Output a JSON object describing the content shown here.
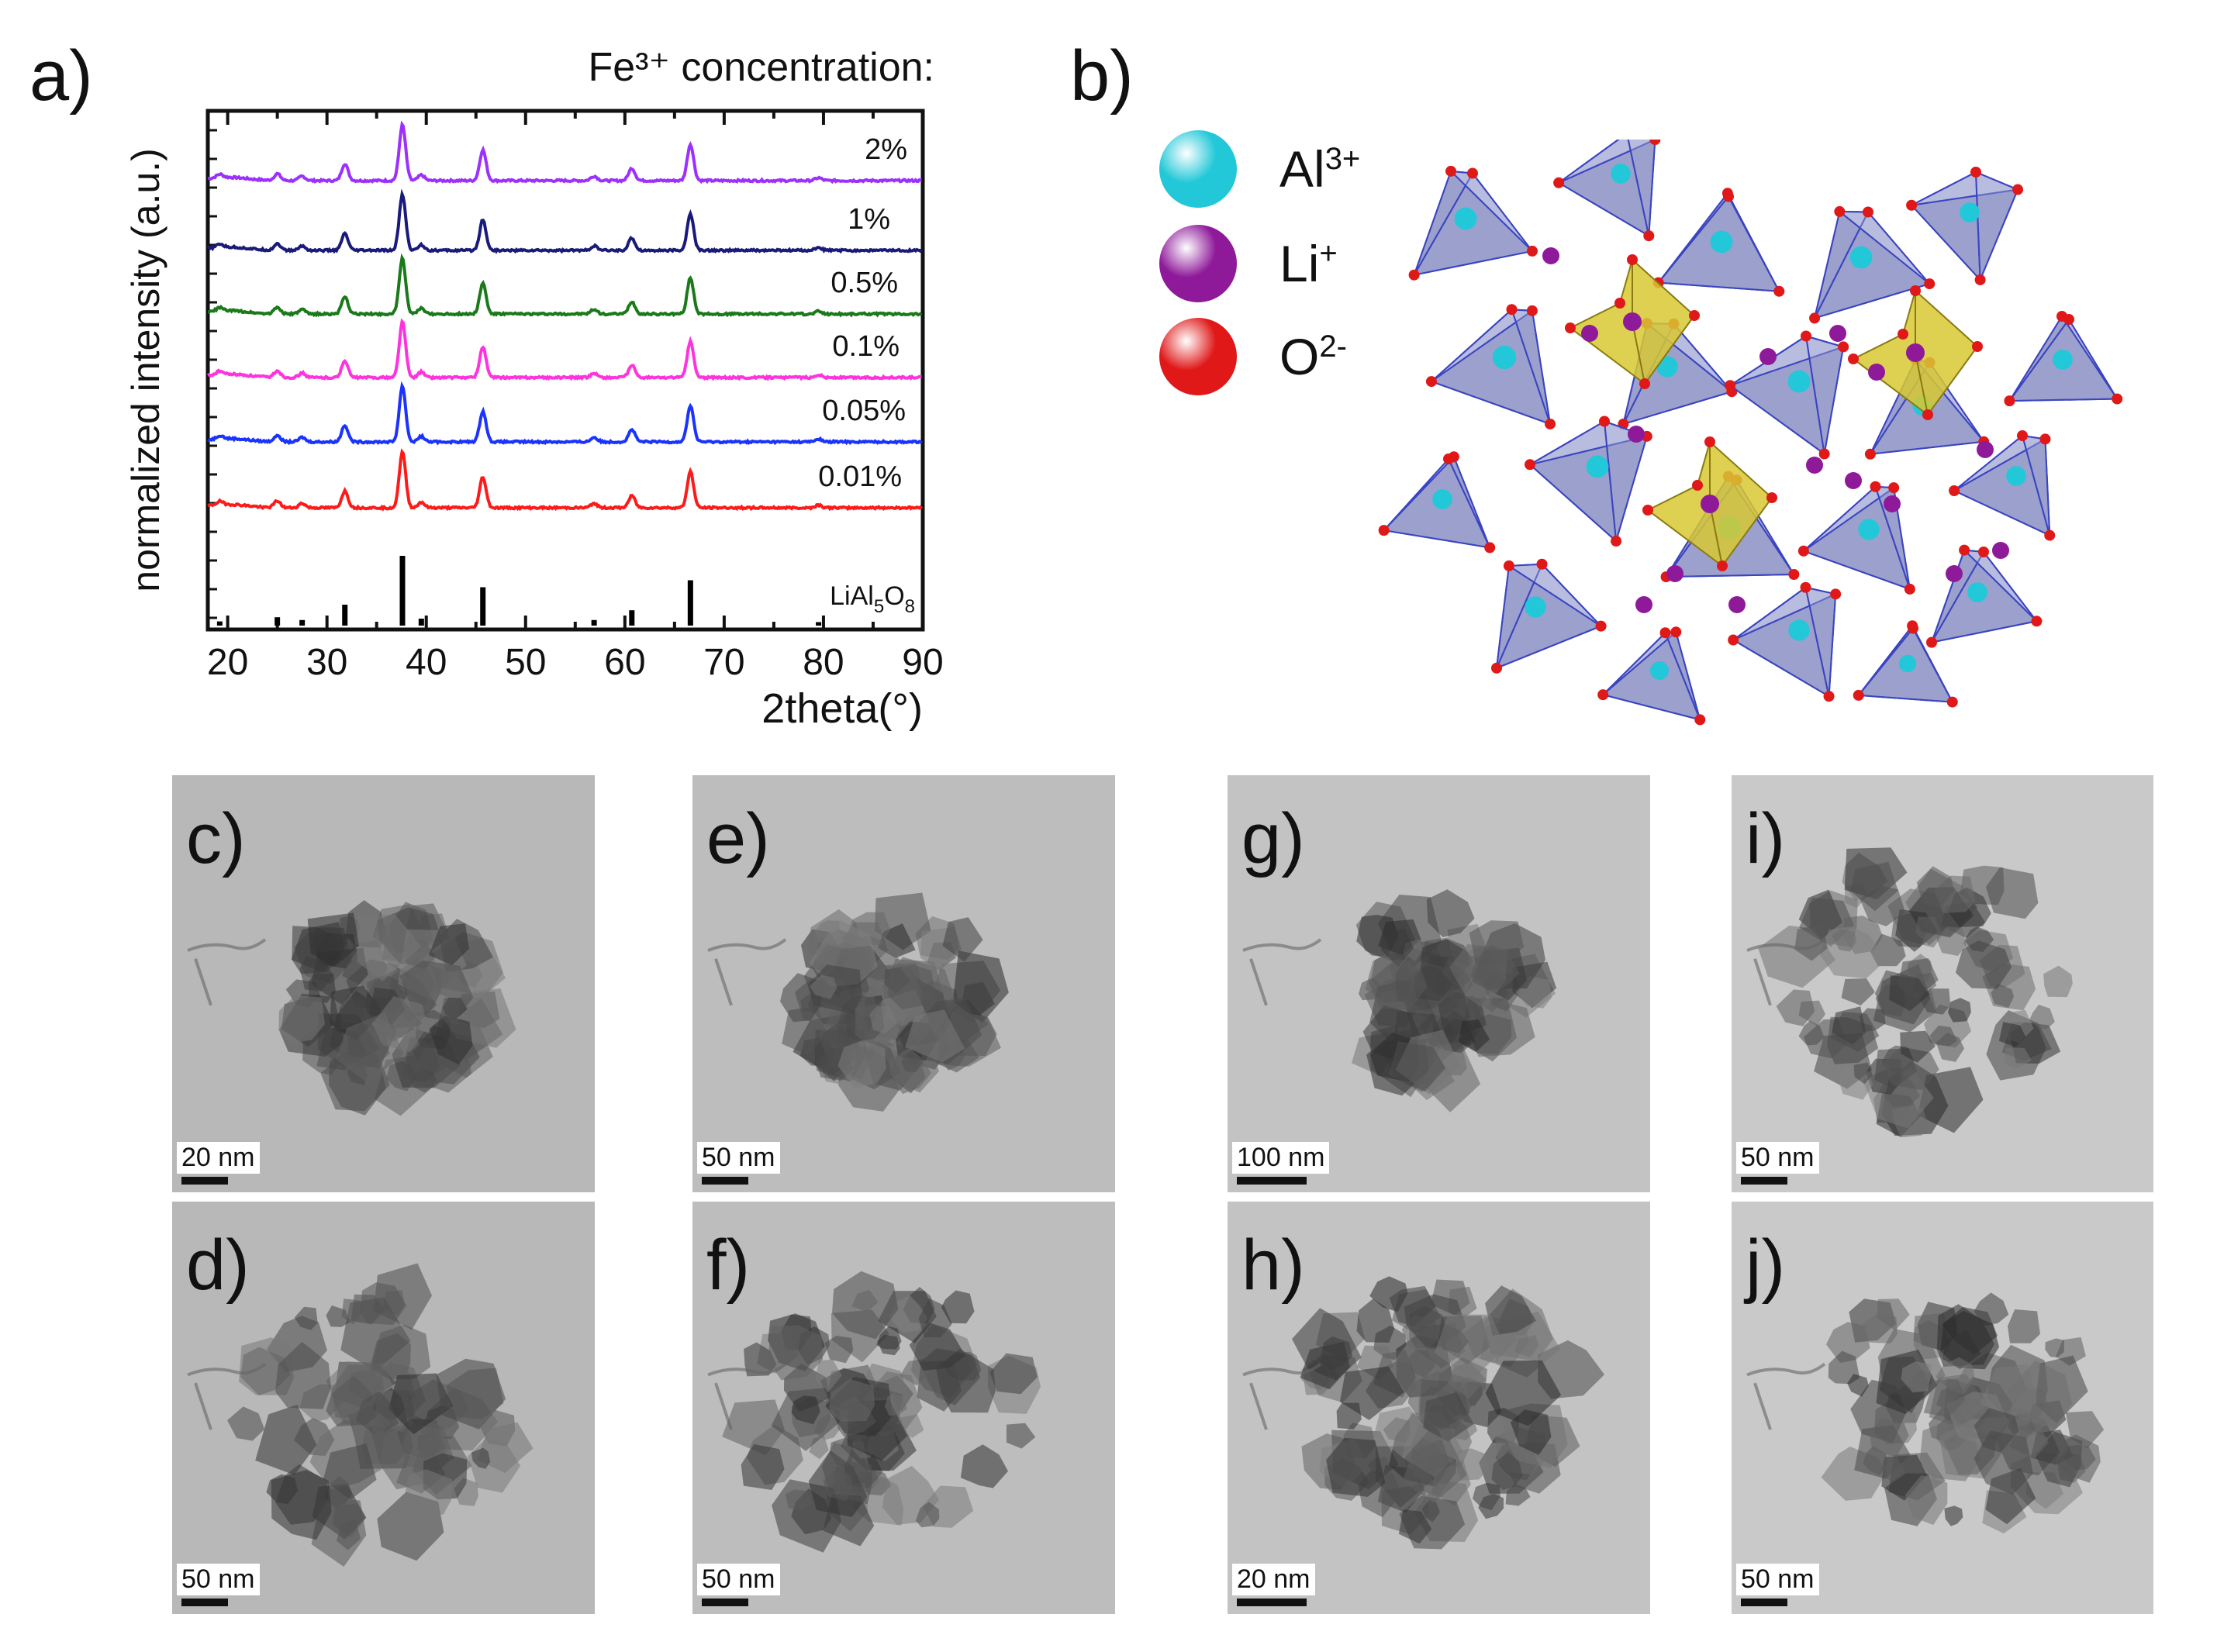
{
  "panel_a": {
    "label": "a)",
    "header": "Fe³⁺ concentration:",
    "chart_data": {
      "type": "line",
      "title": "",
      "xlabel": "2theta(°)",
      "ylabel": "normalized intensity (a.u.)",
      "xlim": [
        18,
        90
      ],
      "xticks": [
        20,
        30,
        40,
        50,
        60,
        70,
        80,
        90
      ],
      "peaks_2theta": [
        19.2,
        25.0,
        27.5,
        31.8,
        37.6,
        39.5,
        45.7,
        56.9,
        60.7,
        66.6,
        79.5
      ],
      "peak_rel_intensity": [
        0.06,
        0.12,
        0.08,
        0.3,
        1.0,
        0.1,
        0.55,
        0.08,
        0.22,
        0.65,
        0.05
      ],
      "series": [
        {
          "name": "2%",
          "color": "#9b30ff"
        },
        {
          "name": "1%",
          "color": "#1a1a7a"
        },
        {
          "name": "0.5%",
          "color": "#1a7a1a"
        },
        {
          "name": "0.1%",
          "color": "#ff33dd"
        },
        {
          "name": "0.05%",
          "color": "#1a33ff"
        },
        {
          "name": "0.01%",
          "color": "#ff1a1a"
        }
      ],
      "reference": {
        "name": "LiAl5O8",
        "color": "#000000"
      },
      "grid": false
    }
  },
  "panel_b": {
    "label": "b)",
    "legend": [
      {
        "ion": "Al",
        "charge": "3+",
        "color": "#22c8d8",
        "icon": "al-ion-sphere-icon"
      },
      {
        "ion": "Li",
        "charge": "+",
        "color": "#8e1a9a",
        "icon": "li-ion-sphere-icon"
      },
      {
        "ion": "O",
        "charge": "2-",
        "color": "#e01818",
        "icon": "o-ion-sphere-icon"
      }
    ]
  },
  "tem_panels": [
    {
      "label": "c)",
      "scale": "20 nm"
    },
    {
      "label": "e)",
      "scale": "50 nm"
    },
    {
      "label": "g)",
      "scale": "100 nm"
    },
    {
      "label": "i)",
      "scale": "50 nm"
    },
    {
      "label": "d)",
      "scale": "50 nm"
    },
    {
      "label": "f)",
      "scale": "50 nm"
    },
    {
      "label": "h)",
      "scale": "20 nm"
    },
    {
      "label": "j)",
      "scale": "50 nm"
    }
  ]
}
